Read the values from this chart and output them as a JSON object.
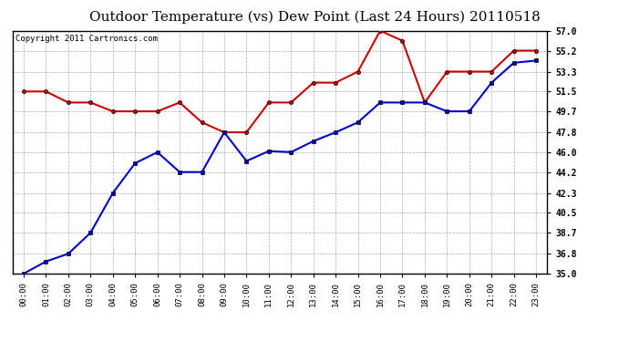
{
  "title": "Outdoor Temperature (vs) Dew Point (Last 24 Hours) 20110518",
  "copyright": "Copyright 2011 Cartronics.com",
  "x_labels": [
    "00:00",
    "01:00",
    "02:00",
    "03:00",
    "04:00",
    "05:00",
    "06:00",
    "07:00",
    "08:00",
    "09:00",
    "10:00",
    "11:00",
    "12:00",
    "13:00",
    "14:00",
    "15:00",
    "16:00",
    "17:00",
    "18:00",
    "19:00",
    "20:00",
    "21:00",
    "22:00",
    "23:00"
  ],
  "temp_red": [
    51.5,
    51.5,
    50.5,
    50.5,
    49.7,
    49.7,
    49.7,
    50.5,
    48.7,
    47.8,
    47.8,
    50.5,
    50.5,
    52.3,
    52.3,
    53.3,
    57.0,
    56.1,
    50.5,
    53.3,
    53.3,
    53.3,
    55.2,
    55.2
  ],
  "dew_blue": [
    35.0,
    36.1,
    36.8,
    38.7,
    42.3,
    45.0,
    46.0,
    44.2,
    44.2,
    47.8,
    45.2,
    46.1,
    46.0,
    47.0,
    47.8,
    48.7,
    50.5,
    50.5,
    50.5,
    49.7,
    49.7,
    52.3,
    54.1,
    54.3
  ],
  "ylim_min": 35.0,
  "ylim_max": 57.0,
  "yticks": [
    35.0,
    36.8,
    38.7,
    40.5,
    42.3,
    44.2,
    46.0,
    47.8,
    49.7,
    51.5,
    53.3,
    55.2,
    57.0
  ],
  "red_color": "#cc0000",
  "blue_color": "#0000cc",
  "bg_color": "#ffffff",
  "plot_bg": "#ffffff",
  "grid_color": "#aaaaaa",
  "title_fontsize": 11,
  "copyright_fontsize": 6.5
}
